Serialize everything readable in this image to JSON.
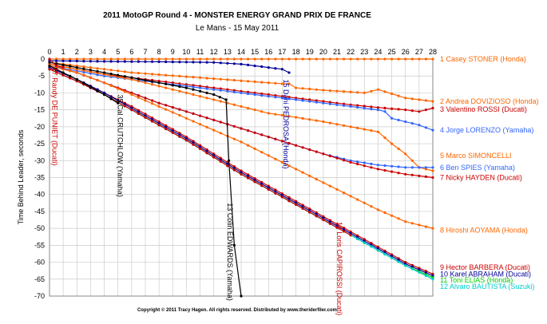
{
  "chart_data": {
    "type": "line",
    "title": "2011 MotoGP Round 4 - MONSTER ENERGY GRAND PRIX DE FRANCE",
    "subtitle": "Le Mans - 15 May 2011",
    "xlabel": "",
    "ylabel": "Time Behind Leader,  seconds",
    "xlim": [
      0,
      28
    ],
    "ylim": [
      -70,
      0
    ],
    "x_ticks": [
      "0",
      "1",
      "2",
      "3",
      "4",
      "5",
      "6",
      "7",
      "8",
      "9",
      "10",
      "11",
      "12",
      "13",
      "14",
      "15",
      "16",
      "17",
      "18",
      "19",
      "20",
      "21",
      "22",
      "23",
      "24",
      "25",
      "26",
      "27",
      "28"
    ],
    "y_ticks": [
      "0",
      "-5",
      "-10",
      "-15",
      "-20",
      "-25",
      "-30",
      "-35",
      "-40",
      "-45",
      "-50",
      "-55",
      "-60",
      "-65",
      "-70"
    ],
    "grid": true,
    "legend_position": "right",
    "copyright": "Copyright © 2011 Tracy Hagen. All rights reserved. Distributed by www.theriderfiler.com",
    "series": [
      {
        "name": "1 Casey STONER (Honda)",
        "color": "#ff6600",
        "x": [
          0,
          28
        ],
        "y": [
          0,
          0
        ]
      },
      {
        "name": "2 Andrea DOVIZIOSO (Honda)",
        "color": "#ff6600",
        "x": [
          0,
          2,
          4,
          6,
          8,
          10,
          12,
          14,
          16,
          17,
          17.5,
          18,
          20,
          22,
          23,
          23.5,
          24,
          26,
          28
        ],
        "y": [
          -1,
          -2,
          -3,
          -4,
          -4.6,
          -5.2,
          -5.8,
          -6.4,
          -7,
          -7.3,
          -7.3,
          -8.5,
          -9.2,
          -9.7,
          -10,
          -9.5,
          -9,
          -11.5,
          -12.5
        ]
      },
      {
        "name": "3 Valentino ROSSI (Ducati)",
        "color": "#cc0000",
        "x": [
          0,
          2,
          4,
          6,
          8,
          10,
          12,
          14,
          16,
          18,
          20,
          22,
          24,
          26,
          27,
          28
        ],
        "y": [
          -1.5,
          -3,
          -4.5,
          -5.5,
          -6.5,
          -7.5,
          -8.5,
          -9.5,
          -10.5,
          -11.5,
          -12.5,
          -13.5,
          -14.3,
          -15,
          -15.5,
          -14.5
        ]
      },
      {
        "name": "4 Jorge LORENZO (Yamaha)",
        "color": "#3366ff",
        "x": [
          0,
          2,
          4,
          6,
          8,
          10,
          12,
          14,
          16,
          18,
          20,
          22,
          23,
          24,
          24.5,
          25,
          26,
          27,
          28
        ],
        "y": [
          -2,
          -3.5,
          -5,
          -6,
          -7,
          -8,
          -9,
          -10,
          -11,
          -12,
          -13,
          -14,
          -14.5,
          -15,
          -15.5,
          -17.5,
          -18.5,
          -19.5,
          -21
        ]
      },
      {
        "name": "5 Marco SIMONCELLI",
        "color": "#ff6600",
        "x": [
          0,
          2,
          4,
          6,
          8,
          10,
          12,
          14,
          16,
          18,
          20,
          22,
          24,
          25,
          26,
          27,
          28
        ],
        "y": [
          -1.5,
          -3,
          -4.5,
          -6,
          -8,
          -10,
          -12,
          -14,
          -16,
          -17.2,
          -18.5,
          -20,
          -21.5,
          -25,
          -28,
          -32,
          -33
        ]
      },
      {
        "name": "6 Ben SPIES (Yamaha)",
        "color": "#3366ff",
        "x": [
          0,
          2,
          4,
          6,
          8,
          10,
          12,
          14,
          16,
          18,
          20,
          22,
          24,
          26,
          28
        ],
        "y": [
          -2,
          -4,
          -7,
          -10,
          -13,
          -15.5,
          -18,
          -20.5,
          -23,
          -25.5,
          -28,
          -30,
          -31.3,
          -32,
          -32
        ]
      },
      {
        "name": "7 Nicky HAYDEN (Ducati)",
        "color": "#cc0000",
        "x": [
          0,
          2,
          4,
          6,
          8,
          10,
          12,
          14,
          16,
          18,
          20,
          22,
          24,
          26,
          28
        ],
        "y": [
          -2,
          -4,
          -7,
          -10,
          -13,
          -15.5,
          -18,
          -20.5,
          -23,
          -25.5,
          -28,
          -30.5,
          -32.5,
          -34,
          -35
        ]
      },
      {
        "name": "8 Hiroshi AOYAMA (Honda)",
        "color": "#ff6600",
        "x": [
          0,
          2,
          4,
          6,
          8,
          10,
          12,
          14,
          16,
          18,
          20,
          22,
          24,
          26,
          28
        ],
        "y": [
          -2,
          -4,
          -7,
          -10.5,
          -14,
          -17.5,
          -21,
          -24.5,
          -28.5,
          -32.5,
          -36.5,
          -40.5,
          -44.5,
          -48,
          -50
        ]
      },
      {
        "name": "9 Hector BARBERA (Ducati)",
        "color": "#cc0000",
        "x": [
          0,
          2,
          4,
          6,
          8,
          10,
          12,
          14,
          16,
          18,
          20,
          22,
          24,
          26,
          28
        ],
        "y": [
          -2.5,
          -6,
          -10,
          -14,
          -18.5,
          -23,
          -28,
          -33,
          -37.5,
          -42,
          -46.5,
          -51,
          -55.5,
          -60,
          -63.5
        ]
      },
      {
        "name": "10 Karel ABRAHAM (Ducati)",
        "color": "#000099",
        "x": [
          0,
          2,
          4,
          6,
          8,
          10,
          12,
          14,
          16,
          18,
          20,
          22,
          24,
          26,
          28
        ],
        "y": [
          -2.5,
          -6,
          -10,
          -14.5,
          -19,
          -23.5,
          -28.5,
          -33.5,
          -38,
          -42.5,
          -47,
          -51.5,
          -56,
          -60.5,
          -64
        ]
      },
      {
        "name": "11 Toni ELIAS (Honda)",
        "color": "#00cc00",
        "x": [
          0,
          2,
          4,
          6,
          8,
          10,
          12,
          14,
          16,
          18,
          20,
          22,
          24,
          26,
          28
        ],
        "y": [
          -3,
          -6.5,
          -10.5,
          -15,
          -19.5,
          -24,
          -29,
          -34,
          -38.5,
          -43,
          -47.5,
          -52,
          -56.5,
          -61,
          -64.5
        ]
      },
      {
        "name": "12 Alvaro BAUTISTA (Suzuki)",
        "color": "#00cccc",
        "x": [
          0,
          2,
          4,
          6,
          8,
          10,
          12,
          14,
          16,
          18,
          20,
          22,
          24,
          26,
          28
        ],
        "y": [
          -3,
          -6.5,
          -10.5,
          -15,
          -19.5,
          -24,
          -29,
          -34,
          -38.5,
          -43,
          -47.5,
          -52,
          -56.5,
          -61,
          -65
        ]
      },
      {
        "name": "13 Colin EDWARDS (Yamaha)",
        "color": "#000000",
        "x": [
          0,
          2,
          4,
          6,
          8,
          10,
          12,
          12.9,
          13.1,
          13.5,
          14
        ],
        "y": [
          -1,
          -2.5,
          -4,
          -5.5,
          -7,
          -8.5,
          -10.5,
          -12,
          -30,
          -55,
          -70
        ]
      },
      {
        "name": "14 Loris CAPIROSSI (Ducati)",
        "color": "#cc0000",
        "x": [
          0,
          2,
          4,
          6,
          8,
          10,
          12,
          14,
          16,
          18,
          20,
          22
        ],
        "y": [
          -3,
          -6.5,
          -10.5,
          -15,
          -19.5,
          -24,
          -29,
          -34,
          -38.5,
          -43,
          -47.5,
          -52
        ]
      },
      {
        "name": "15 Dani PEDROSA (Honda)",
        "color": "#000099",
        "x": [
          0,
          4,
          8,
          12,
          14,
          16,
          17,
          17.5
        ],
        "y": [
          -0.5,
          -0.7,
          -0.8,
          -1,
          -1.5,
          -2.5,
          -3,
          -4
        ]
      },
      {
        "name": "17 Randy DE PUNIET (Ducati)",
        "color": "#cc0000",
        "x": [
          0,
          0.5,
          1
        ],
        "y": [
          0,
          -2,
          -2.5
        ]
      },
      {
        "name": "35 Cal CRUTCHLOW (Yamaha)",
        "color": "#000000",
        "x": [
          0,
          2,
          4,
          5
        ],
        "y": [
          -2,
          -6,
          -10.5,
          -13
        ]
      }
    ],
    "legend_entries": [
      {
        "text": "1 Casey STONER (Honda)",
        "color": "#ff6600",
        "y": 0
      },
      {
        "text": "2 Andrea DOVIZIOSO (Honda)",
        "color": "#ff6600",
        "y": -12.5
      },
      {
        "text": "3 Valentino ROSSI (Ducati)",
        "color": "#cc0000",
        "y": -14.8
      },
      {
        "text": "4 Jorge LORENZO (Yamaha)",
        "color": "#3366ff",
        "y": -21
      },
      {
        "text": "5 Marco SIMONCELLI",
        "color": "#ff6600",
        "y": -28.5
      },
      {
        "text": "6 Ben SPIES (Yamaha)",
        "color": "#3366ff",
        "y": -32
      },
      {
        "text": "7 Nicky HAYDEN (Ducati)",
        "color": "#cc0000",
        "y": -35
      },
      {
        "text": "8 Hiroshi AOYAMA (Honda)",
        "color": "#ff6600",
        "y": -50.5
      },
      {
        "text": "9 Hector BARBERA (Ducati)",
        "color": "#cc0000",
        "y": -61.5
      },
      {
        "text": "10 Karel ABRAHAM (Ducati)",
        "color": "#000099",
        "y": -63.5
      },
      {
        "text": "11 Toni ELIAS (Honda)",
        "color": "#00cc00",
        "y": -65.3
      },
      {
        "text": "12 Alvaro BAUTISTA (Suzuki)",
        "color": "#00cccc",
        "y": -67.2
      }
    ],
    "rider_annotations": [
      {
        "text": "17 Randy DE PUNIET (Ducati)",
        "color": "#cc0000",
        "x": 0.2,
        "y": -2.5
      },
      {
        "text": "35 Cal CRUTCHLOW (Yamaha)",
        "color": "#000000",
        "x": 5.0,
        "y": -10.5
      },
      {
        "text": "15 Dani PEDROSA (Honda)",
        "color": "#000099",
        "x": 17.1,
        "y": -6
      },
      {
        "text": "13 Colin EDWARDS (Yamaha)",
        "color": "#000000",
        "x": 13.0,
        "y": -42.5
      },
      {
        "text": "14 Loris CAPIROSSI (Ducati)",
        "color": "#cc0000",
        "x": 21.0,
        "y": -48
      }
    ]
  }
}
